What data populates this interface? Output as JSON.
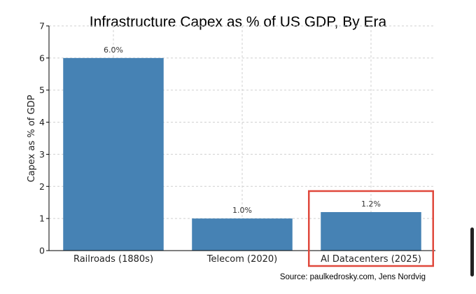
{
  "chart_data": {
    "type": "bar",
    "title": "Infrastructure Capex as % of US GDP, By Era",
    "ylabel": "Capex as % of GDP",
    "xlabel": "",
    "categories": [
      "Railroads (1880s)",
      "Telecom (2020)",
      "AI Datacenters (2025)"
    ],
    "values": [
      6.0,
      1.0,
      1.2
    ],
    "data_labels": [
      "6.0%",
      "1.0%",
      "1.2%"
    ],
    "ylim": [
      0,
      7
    ],
    "yticks": [
      0,
      1,
      2,
      3,
      4,
      5,
      6,
      7
    ],
    "grid": true,
    "bar_color": "#4682b4",
    "highlight_category": "AI Datacenters (2025)",
    "highlight_color": "#e0483c",
    "source": "Source: paulkedrosky.com, Jens Nordvig"
  }
}
